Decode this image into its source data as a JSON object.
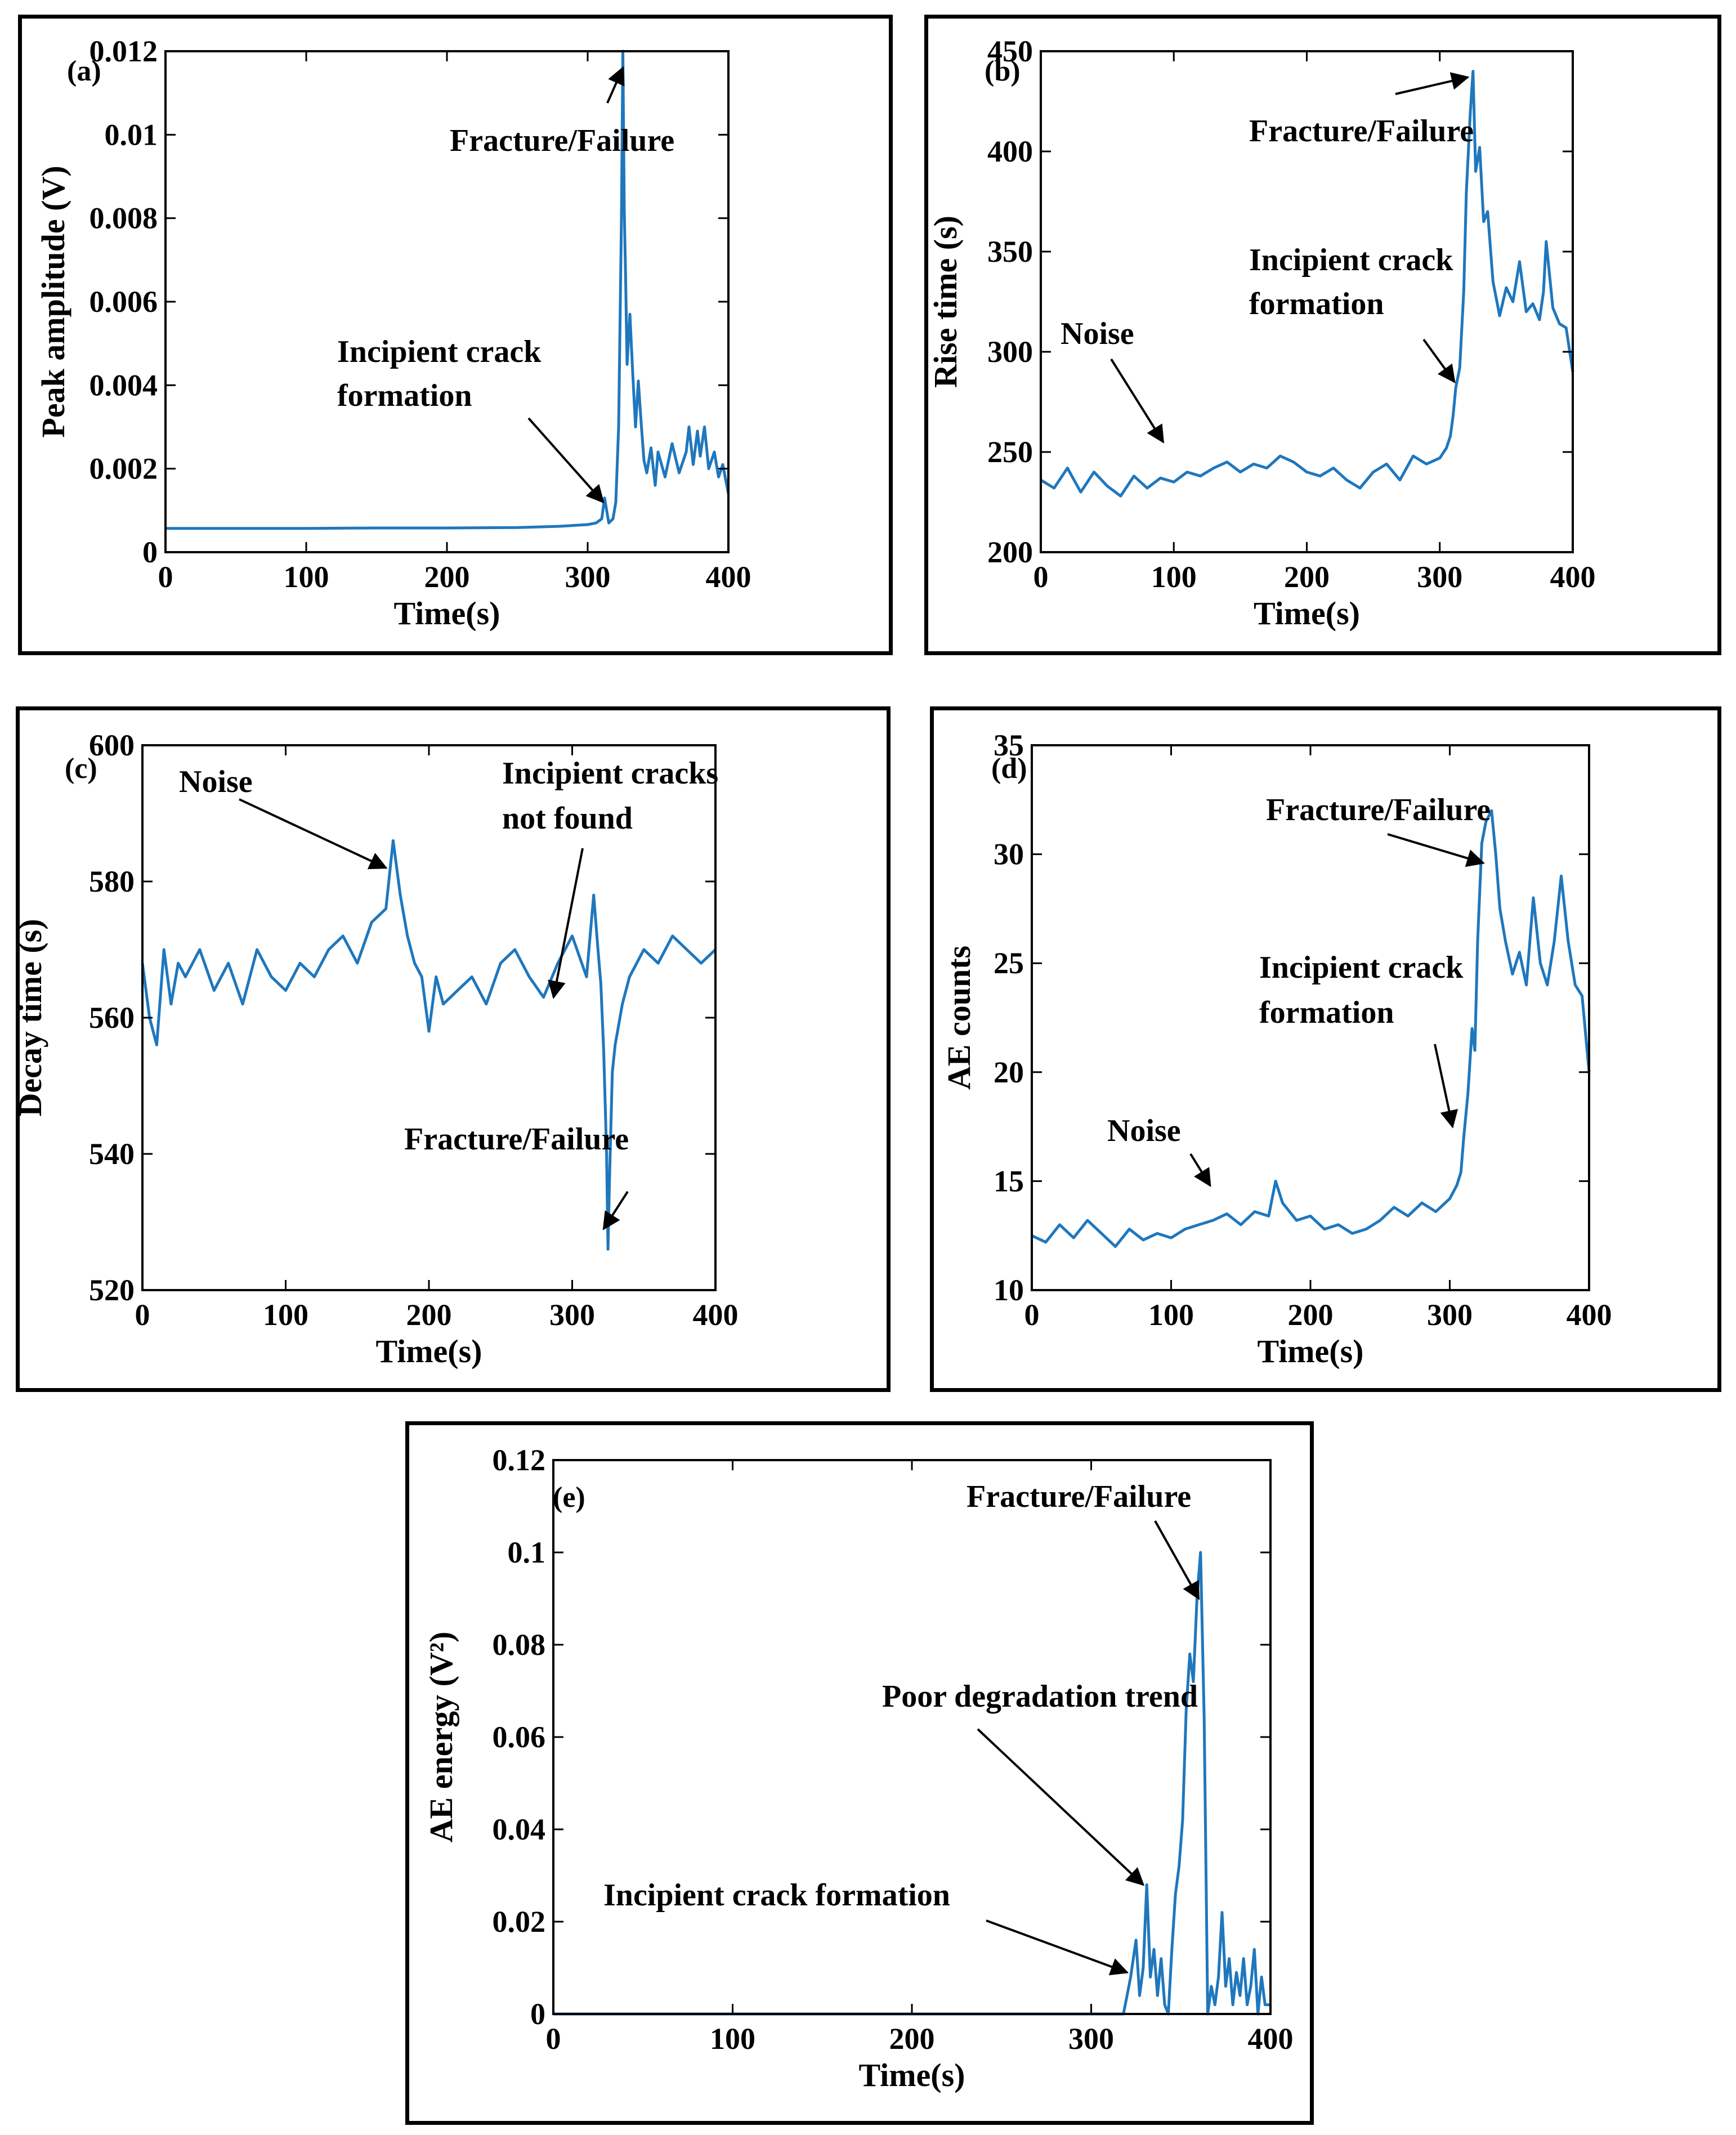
{
  "colors": {
    "series": "#1f77bd",
    "axis": "#000000",
    "background": "#ffffff"
  },
  "chart_data": [
    {
      "id": "a",
      "type": "line",
      "panel_label": "(a)",
      "xlabel": "Time(s)",
      "ylabel": "Peak amplitude (V)",
      "xlim": [
        0,
        400
      ],
      "ylim": [
        0,
        0.012
      ],
      "x_ticks": [
        0,
        100,
        200,
        300,
        400
      ],
      "y_ticks": [
        0,
        0.002,
        0.004,
        0.006,
        0.008,
        0.01,
        0.012
      ],
      "y_tick_labels": [
        "0",
        "0.002",
        "0.004",
        "0.006",
        "0.008",
        "0.01",
        "0.012"
      ],
      "annotations": [
        {
          "lines": [
            "Fracture/Failure"
          ],
          "arrow_to": [
            325,
            0.0116
          ]
        },
        {
          "lines": [
            "Incipient crack",
            "formation"
          ],
          "arrow_to": [
            311,
            0.0012
          ]
        }
      ],
      "series": [
        {
          "name": "Peak amplitude",
          "x": [
            0,
            50,
            100,
            150,
            200,
            250,
            280,
            300,
            306,
            310,
            312,
            315,
            318,
            320,
            322,
            324,
            325,
            326,
            327,
            328,
            329,
            330,
            332,
            334,
            336,
            338,
            340,
            342,
            345,
            348,
            350,
            355,
            360,
            365,
            370,
            372,
            375,
            378,
            380,
            383,
            386,
            390,
            393,
            396,
            400
          ],
          "values": [
            0.00057,
            0.00057,
            0.00057,
            0.00058,
            0.00058,
            0.00059,
            0.00062,
            0.00066,
            0.0007,
            0.0008,
            0.0013,
            0.0007,
            0.0008,
            0.0012,
            0.003,
            0.008,
            0.012,
            0.0082,
            0.0065,
            0.0045,
            0.0051,
            0.0057,
            0.0043,
            0.003,
            0.0041,
            0.0031,
            0.0022,
            0.0019,
            0.0025,
            0.0016,
            0.0024,
            0.0018,
            0.0026,
            0.0019,
            0.0024,
            0.003,
            0.0021,
            0.0029,
            0.0023,
            0.003,
            0.002,
            0.0024,
            0.0018,
            0.0021,
            0.0014
          ]
        }
      ]
    },
    {
      "id": "b",
      "type": "line",
      "panel_label": "(b)",
      "xlabel": "Time(s)",
      "ylabel": "Rise time (s)",
      "xlim": [
        0,
        400
      ],
      "ylim": [
        200,
        450
      ],
      "x_ticks": [
        0,
        100,
        200,
        300,
        400
      ],
      "y_ticks": [
        200,
        250,
        300,
        350,
        400,
        450
      ],
      "y_tick_labels": [
        "200",
        "250",
        "300",
        "350",
        "400",
        "450"
      ],
      "annotations": [
        {
          "lines": [
            "Fracture/Failure"
          ],
          "arrow_to": [
            321,
            437
          ]
        },
        {
          "lines": [
            "Incipient crack",
            "formation"
          ],
          "arrow_to": [
            311,
            285
          ]
        },
        {
          "lines": [
            "Noise"
          ],
          "arrow_to": [
            92,
            255
          ]
        }
      ],
      "series": [
        {
          "name": "Rise time",
          "x": [
            0,
            10,
            20,
            30,
            40,
            50,
            60,
            70,
            80,
            90,
            100,
            110,
            120,
            130,
            140,
            150,
            160,
            170,
            180,
            190,
            200,
            210,
            220,
            230,
            240,
            250,
            260,
            270,
            280,
            290,
            300,
            305,
            308,
            310,
            312,
            315,
            318,
            320,
            323,
            325,
            327,
            330,
            333,
            336,
            340,
            345,
            350,
            355,
            360,
            365,
            370,
            375,
            378,
            380,
            385,
            390,
            395,
            400
          ],
          "values": [
            236,
            232,
            242,
            230,
            240,
            233,
            228,
            238,
            232,
            237,
            235,
            240,
            238,
            242,
            245,
            240,
            244,
            242,
            248,
            245,
            240,
            238,
            242,
            236,
            232,
            240,
            244,
            236,
            248,
            244,
            247,
            252,
            258,
            268,
            282,
            292,
            330,
            380,
            420,
            440,
            390,
            402,
            365,
            370,
            335,
            318,
            332,
            325,
            345,
            320,
            324,
            316,
            330,
            355,
            322,
            314,
            312,
            290
          ]
        }
      ]
    },
    {
      "id": "c",
      "type": "line",
      "panel_label": "(c)",
      "xlabel": "Time(s)",
      "ylabel": "Decay time (s)",
      "xlim": [
        0,
        400
      ],
      "ylim": [
        520,
        600
      ],
      "x_ticks": [
        0,
        100,
        200,
        300,
        400
      ],
      "y_ticks": [
        520,
        540,
        560,
        580,
        600
      ],
      "y_tick_labels": [
        "520",
        "540",
        "560",
        "580",
        "600"
      ],
      "annotations": [
        {
          "lines": [
            "Noise"
          ],
          "arrow_to": [
            170,
            582
          ]
        },
        {
          "lines": [
            "Incipient cracks",
            "not found"
          ],
          "arrow_to": [
            287,
            563
          ]
        },
        {
          "lines": [
            "Fracture/Failure"
          ],
          "arrow_to": [
            322,
            529
          ]
        }
      ],
      "series": [
        {
          "name": "Decay time",
          "x": [
            0,
            5,
            10,
            15,
            20,
            25,
            30,
            40,
            50,
            60,
            70,
            80,
            90,
            100,
            110,
            120,
            130,
            140,
            150,
            160,
            170,
            175,
            180,
            185,
            190,
            195,
            200,
            205,
            210,
            220,
            230,
            240,
            250,
            260,
            270,
            280,
            290,
            300,
            310,
            315,
            318,
            320,
            322,
            324,
            325,
            326,
            328,
            330,
            335,
            340,
            350,
            360,
            370,
            380,
            390,
            400
          ],
          "values": [
            568,
            560,
            556,
            570,
            562,
            568,
            566,
            570,
            564,
            568,
            562,
            570,
            566,
            564,
            568,
            566,
            570,
            572,
            568,
            574,
            576,
            586,
            578,
            572,
            568,
            566,
            558,
            566,
            562,
            564,
            566,
            562,
            568,
            570,
            566,
            563,
            568,
            572,
            566,
            578,
            570,
            565,
            555,
            540,
            526,
            536,
            552,
            556,
            562,
            566,
            570,
            568,
            572,
            570,
            568,
            570
          ]
        }
      ]
    },
    {
      "id": "d",
      "type": "line",
      "panel_label": "(d)",
      "xlabel": "Time(s)",
      "ylabel": "AE counts",
      "xlim": [
        0,
        400
      ],
      "ylim": [
        10,
        35
      ],
      "x_ticks": [
        0,
        100,
        200,
        300,
        400
      ],
      "y_ticks": [
        10,
        15,
        20,
        25,
        30,
        35
      ],
      "y_tick_labels": [
        "10",
        "15",
        "20",
        "25",
        "30",
        "35"
      ],
      "annotations": [
        {
          "lines": [
            "Fracture/Failure"
          ],
          "arrow_to": [
            324,
            29.6
          ]
        },
        {
          "lines": [
            "Incipient crack",
            "formation"
          ],
          "arrow_to": [
            302,
            17.5
          ]
        },
        {
          "lines": [
            "Noise"
          ],
          "arrow_to": [
            128,
            14.8
          ]
        }
      ],
      "series": [
        {
          "name": "AE counts",
          "x": [
            0,
            10,
            20,
            30,
            40,
            50,
            60,
            70,
            80,
            90,
            100,
            110,
            120,
            130,
            140,
            150,
            160,
            170,
            175,
            180,
            190,
            200,
            210,
            220,
            230,
            240,
            250,
            260,
            270,
            280,
            290,
            300,
            305,
            308,
            310,
            313,
            316,
            318,
            320,
            323,
            326,
            330,
            333,
            336,
            340,
            345,
            350,
            355,
            360,
            365,
            370,
            375,
            380,
            385,
            390,
            395,
            400
          ],
          "values": [
            12.5,
            12.2,
            13.0,
            12.4,
            13.2,
            12.6,
            12.0,
            12.8,
            12.3,
            12.6,
            12.4,
            12.8,
            13.0,
            13.2,
            13.5,
            13.0,
            13.6,
            13.4,
            15.0,
            14.0,
            13.2,
            13.4,
            12.8,
            13.0,
            12.6,
            12.8,
            13.2,
            13.8,
            13.4,
            14.0,
            13.6,
            14.2,
            14.8,
            15.4,
            17.0,
            19.0,
            22.0,
            21.0,
            26.0,
            30.5,
            31.5,
            32.0,
            30.0,
            27.5,
            26.0,
            24.5,
            25.5,
            24.0,
            28.0,
            25.0,
            24.0,
            26.0,
            29.0,
            26.0,
            24.0,
            23.5,
            20.0
          ]
        }
      ]
    },
    {
      "id": "e",
      "type": "line",
      "panel_label": "(e)",
      "xlabel": "Time(s)",
      "ylabel": "AE energy (V²)",
      "xlim": [
        0,
        400
      ],
      "ylim": [
        0,
        0.12
      ],
      "x_ticks": [
        0,
        100,
        200,
        300,
        400
      ],
      "y_ticks": [
        0,
        0.02,
        0.04,
        0.06,
        0.08,
        0.1,
        0.12
      ],
      "y_tick_labels": [
        "0",
        "0.02",
        "0.04",
        "0.06",
        "0.08",
        "0.1",
        "0.12"
      ],
      "annotations": [
        {
          "lines": [
            "Fracture/Failure"
          ],
          "arrow_to": [
            360,
            0.09
          ]
        },
        {
          "lines": [
            "Poor degradation trend"
          ],
          "arrow_to": [
            329,
            0.028
          ]
        },
        {
          "lines": [
            "Incipient crack formation"
          ],
          "arrow_to": [
            320,
            0.009
          ]
        }
      ],
      "series": [
        {
          "name": "AE energy",
          "x": [
            0,
            100,
            200,
            300,
            318,
            322,
            325,
            327,
            329,
            331,
            333,
            335,
            337,
            339,
            341,
            343,
            345,
            347,
            349,
            351,
            353,
            355,
            357,
            359,
            361,
            363,
            365,
            367,
            369,
            371,
            373,
            375,
            377,
            379,
            381,
            383,
            385,
            387,
            389,
            391,
            393,
            395,
            397,
            400
          ],
          "values": [
            0,
            0,
            0,
            0,
            0,
            0.008,
            0.016,
            0.004,
            0.01,
            0.028,
            0.008,
            0.014,
            0.004,
            0.012,
            0.002,
            0.0,
            0.014,
            0.026,
            0.032,
            0.042,
            0.066,
            0.078,
            0.072,
            0.09,
            0.1,
            0.064,
            0.0,
            0.006,
            0.002,
            0.008,
            0.022,
            0.006,
            0.012,
            0.002,
            0.009,
            0.004,
            0.012,
            0.002,
            0.006,
            0.014,
            0.0,
            0.008,
            0.002,
            0.002
          ]
        }
      ]
    }
  ]
}
